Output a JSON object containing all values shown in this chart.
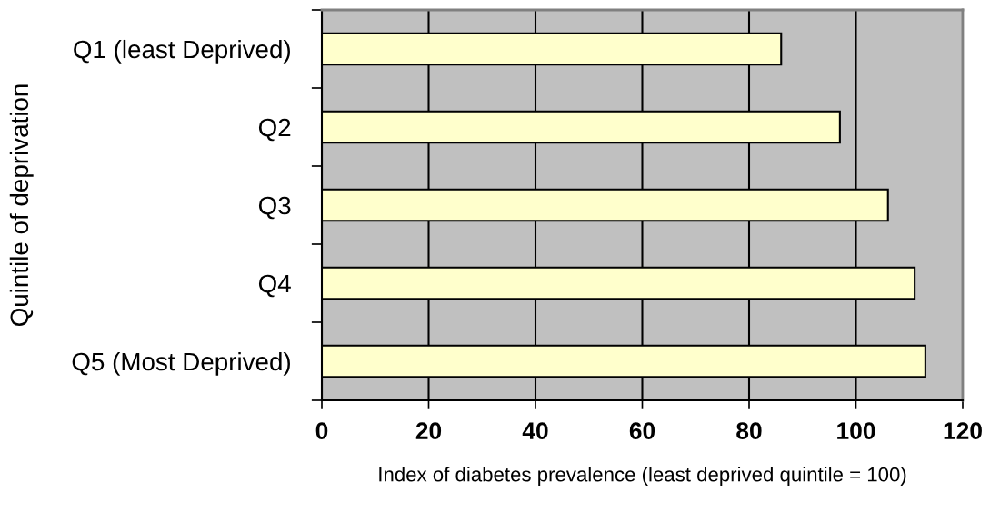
{
  "chart_data": {
    "type": "bar",
    "orientation": "horizontal",
    "categories": [
      "Q1 (least Deprived)",
      "Q2",
      "Q3",
      "Q4",
      "Q5 (Most Deprived)"
    ],
    "values": [
      86,
      97,
      106,
      111,
      113
    ],
    "color": "#ffffcc",
    "xlim": [
      0,
      120
    ],
    "xticks": [
      0,
      20,
      40,
      60,
      80,
      100,
      120
    ],
    "xlabel": "Index of diabetes prevalence (least deprived quintile = 100)",
    "ylabel": "Quintile of deprivation",
    "grid": "x",
    "legend": false
  }
}
